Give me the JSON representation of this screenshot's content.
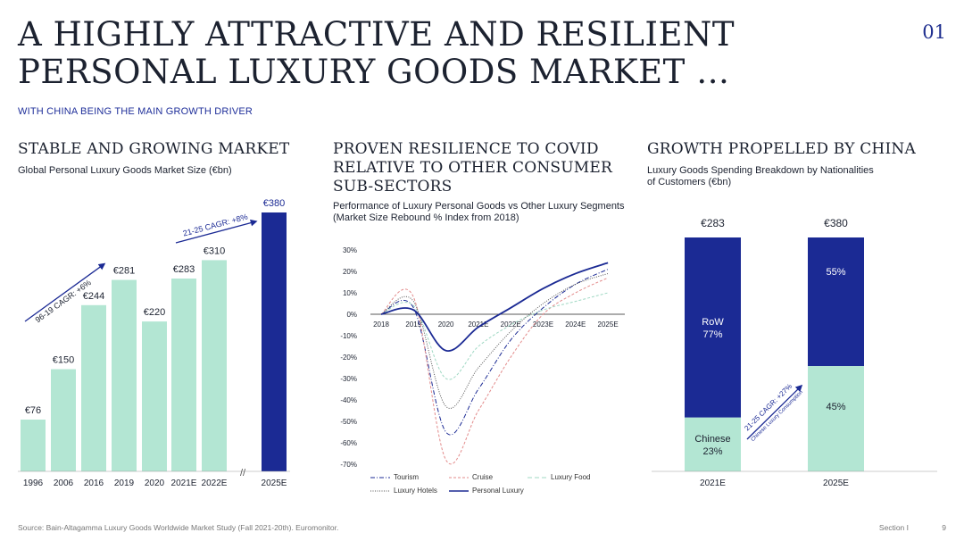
{
  "header": {
    "title": "A HIGHLY ATTRACTIVE AND RESILIENT PERSONAL LUXURY GOODS MARKET …",
    "page_number": "01",
    "subtitle": "WITH CHINA BEING THE MAIN GROWTH DRIVER"
  },
  "sections": {
    "left": {
      "title": "STABLE AND GROWING MARKET",
      "subtitle": "Global Personal Luxury Goods Market Size (€bn)"
    },
    "middle": {
      "title": "PROVEN RESILIENCE TO COVID RELATIVE TO OTHER CONSUMER SUB-SECTORS",
      "subtitle": "Performance of Luxury Personal Goods vs Other Luxury Segments (Market Size Rebound % Index from 2018)"
    },
    "right": {
      "title": "GROWTH PROPELLED BY CHINA",
      "subtitle": "Luxury Goods Spending Breakdown by Nationalities of Customers (€bn)"
    }
  },
  "footer": {
    "source": "Source: Bain-Altagamma Luxury Goods Worldwide Market Study (Fall 2021-20th). Euromonitor.",
    "section": "Section I",
    "page": "9"
  },
  "colors": {
    "mint": "#b3e6d3",
    "navy": "#1b2a94",
    "ink": "#1c2230",
    "accent": "#1f2f9a"
  },
  "chart_data": [
    {
      "type": "bar",
      "categories": [
        "1996",
        "2006",
        "2016",
        "2019",
        "2020",
        "2021E",
        "2022E",
        "2025E"
      ],
      "values": [
        76,
        150,
        244,
        281,
        220,
        283,
        310,
        380
      ],
      "labels": [
        "€76",
        "€150",
        "€244",
        "€281",
        "€220",
        "€283",
        "€310",
        "€380"
      ],
      "highlight": "2025E",
      "axis_break_marker": "//",
      "annotations": [
        "96-19 CAGR: +6%",
        "21-25 CAGR: +8%"
      ],
      "ylim": [
        0,
        380
      ]
    },
    {
      "type": "line",
      "x": [
        "2018",
        "2019",
        "2020",
        "2021E",
        "2022E",
        "2023E",
        "2024E",
        "2025E"
      ],
      "yticks": [
        30,
        20,
        10,
        0,
        -10,
        -20,
        -30,
        -40,
        -50,
        -60,
        -70
      ],
      "ytick_labels": [
        "30%",
        "20%",
        "10%",
        "0%",
        "-10%",
        "-20%",
        "-30%",
        "-40%",
        "-50%",
        "-60%",
        "-70%"
      ],
      "ylim": [
        -70,
        30
      ],
      "series": [
        {
          "name": "Tourism",
          "style": "dashdot",
          "color": "#1b2a94",
          "values": [
            0,
            3,
            -55,
            -35,
            -12,
            3,
            14,
            21
          ]
        },
        {
          "name": "Cruise",
          "style": "dashed",
          "color": "#e38b8b",
          "values": [
            0,
            8,
            -68,
            -45,
            -20,
            0,
            10,
            17
          ]
        },
        {
          "name": "Luxury Food",
          "style": "dashed",
          "color": "#9fd8c3",
          "values": [
            0,
            4,
            -30,
            -15,
            -5,
            2,
            6,
            10
          ]
        },
        {
          "name": "Luxury Hotels",
          "style": "dotted",
          "color": "#555555",
          "values": [
            0,
            6,
            -43,
            -25,
            -8,
            5,
            14,
            19
          ]
        },
        {
          "name": "Personal Luxury",
          "style": "solid",
          "color": "#1b2a94",
          "values": [
            0,
            2,
            -17,
            -6,
            3,
            12,
            19,
            24
          ]
        }
      ]
    },
    {
      "type": "bar",
      "stacked": true,
      "categories": [
        "2021E",
        "2025E"
      ],
      "totals": [
        283,
        380
      ],
      "total_labels": [
        "€283",
        "€380"
      ],
      "series": [
        {
          "name": "Chinese",
          "values_pct": [
            23,
            45
          ],
          "labels": [
            "Chinese\n23%",
            "45%"
          ],
          "color": "#b3e6d3"
        },
        {
          "name": "RoW",
          "values_pct": [
            77,
            55
          ],
          "labels": [
            "RoW\n77%",
            "55%"
          ],
          "color": "#1b2a94"
        }
      ],
      "annotation": {
        "text": "21-25 CAGR: +27%",
        "subtext": "Chinese Luxury Consumption"
      }
    }
  ]
}
